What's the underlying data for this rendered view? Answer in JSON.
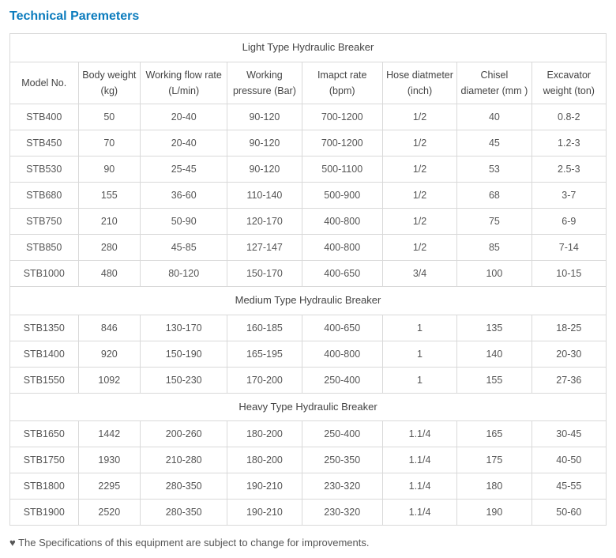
{
  "title": "Technical Paremeters",
  "columns": [
    "Model No.",
    "Body weight (kg)",
    "Working flow rate (L/min)",
    "Working pressure (Bar)",
    "Imapct rate (bpm)",
    "Hose diatmeter (inch)",
    "Chisel diameter (mm )",
    "Excavator weight (ton)"
  ],
  "sections": [
    {
      "header": "Light Type Hydraulic Breaker",
      "rows": [
        [
          "STB400",
          "50",
          "20-40",
          "90-120",
          "700-1200",
          "1/2",
          "40",
          "0.8-2"
        ],
        [
          "STB450",
          "70",
          "20-40",
          "90-120",
          "700-1200",
          "1/2",
          "45",
          "1.2-3"
        ],
        [
          "STB530",
          "90",
          "25-45",
          "90-120",
          "500-1100",
          "1/2",
          "53",
          "2.5-3"
        ],
        [
          "STB680",
          "155",
          "36-60",
          "110-140",
          "500-900",
          "1/2",
          "68",
          "3-7"
        ],
        [
          "STB750",
          "210",
          "50-90",
          "120-170",
          "400-800",
          "1/2",
          "75",
          "6-9"
        ],
        [
          "STB850",
          "280",
          "45-85",
          "127-147",
          "400-800",
          "1/2",
          "85",
          "7-14"
        ],
        [
          "STB1000",
          "480",
          "80-120",
          "150-170",
          "400-650",
          "3/4",
          "100",
          "10-15"
        ]
      ]
    },
    {
      "header": "Medium Type Hydraulic Breaker",
      "rows": [
        [
          "STB1350",
          "846",
          "130-170",
          "160-185",
          "400-650",
          "1",
          "135",
          "18-25"
        ],
        [
          "STB1400",
          "920",
          "150-190",
          "165-195",
          "400-800",
          "1",
          "140",
          "20-30"
        ],
        [
          "STB1550",
          "1092",
          "150-230",
          "170-200",
          "250-400",
          "1",
          "155",
          "27-36"
        ]
      ]
    },
    {
      "header": "Heavy Type Hydraulic Breaker",
      "rows": [
        [
          "STB1650",
          "1442",
          "200-260",
          "180-200",
          "250-400",
          "1.1/4",
          "165",
          "30-45"
        ],
        [
          "STB1750",
          "1930",
          "210-280",
          "180-200",
          "250-350",
          "1.1/4",
          "175",
          "40-50"
        ],
        [
          "STB1800",
          "2295",
          "280-350",
          "190-210",
          "230-320",
          "1.1/4",
          "180",
          "45-55"
        ],
        [
          "STB1900",
          "2520",
          "280-350",
          "190-210",
          "230-320",
          "1.1/4",
          "190",
          "50-60"
        ]
      ]
    }
  ],
  "note": "♥ The Specifications of this equipment are subject to change for improvements.",
  "style": {
    "title_color": "#0a7bbd",
    "border_color": "#d9d9d9",
    "text_color": "#555555",
    "background": "#ffffff",
    "font_family": "Arial, Helvetica, sans-serif"
  }
}
